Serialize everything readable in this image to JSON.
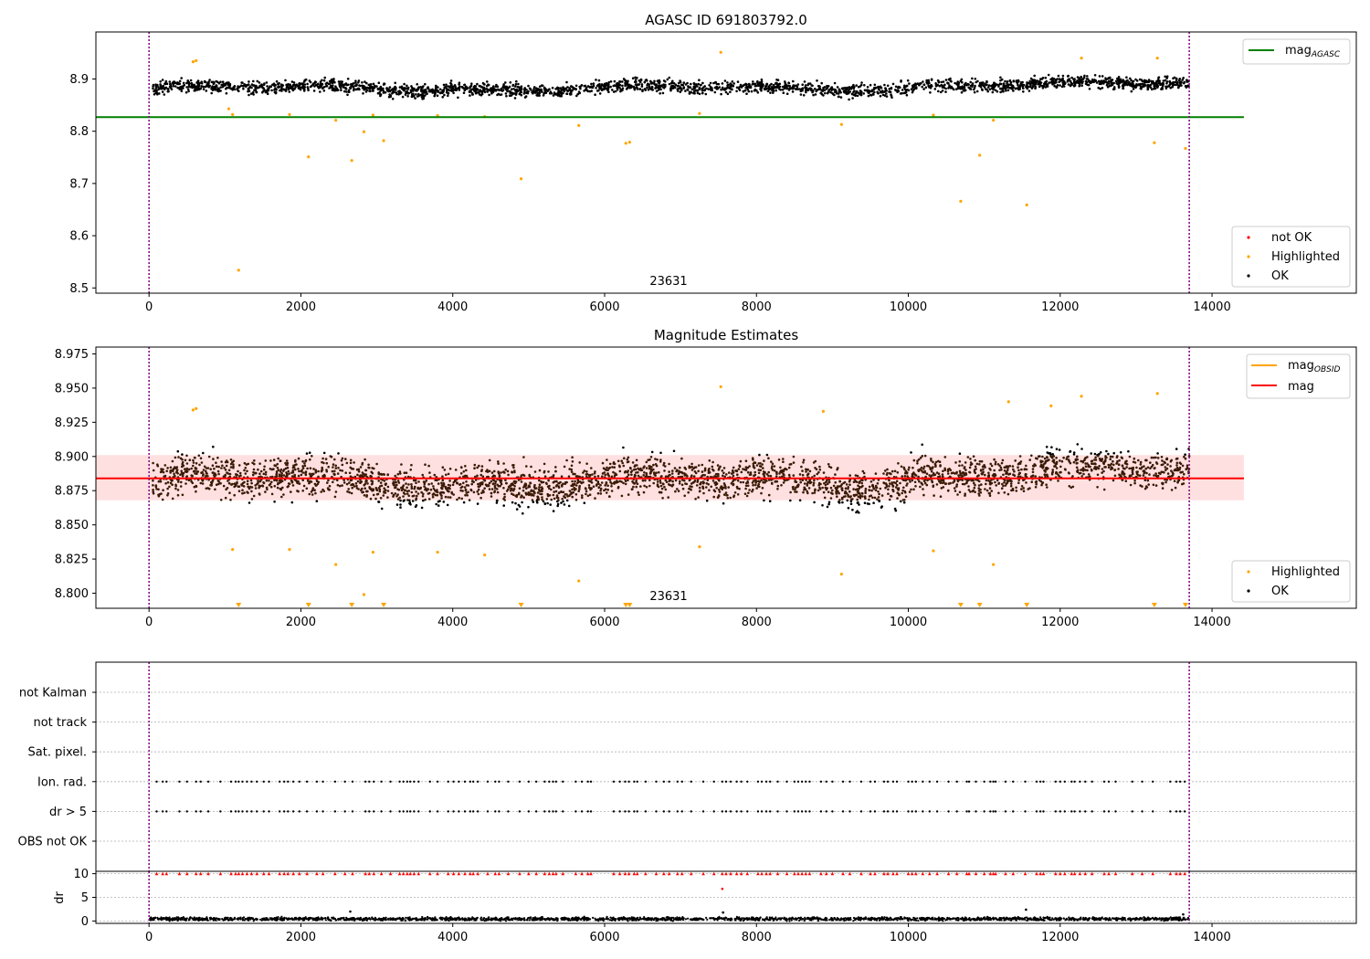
{
  "figure": {
    "title_top": "AGASC ID 691803792.0",
    "title_mid": "Magnitude Estimates",
    "obsid_label": "23631"
  },
  "colors": {
    "ok": "#000000",
    "highlighted": "#ffa500",
    "not_ok": "#ff0000",
    "mag_agasc": "#008000",
    "mag_obsid": "#ffa500",
    "mag_mean": "#ff0000",
    "band_fill": "#ffcccc",
    "marker_line": "#800080"
  },
  "chart_data": [
    {
      "id": "top",
      "type": "scatter",
      "title": "AGASC ID 691803792.0",
      "xlim": [
        -700,
        15900
      ],
      "ylim": [
        8.49,
        8.99
      ],
      "xticks": [
        0,
        2000,
        4000,
        6000,
        8000,
        10000,
        12000,
        14000
      ],
      "yticks": [
        8.5,
        8.6,
        8.7,
        8.8,
        8.9
      ],
      "obs_boundaries": [
        0,
        13700
      ],
      "obsid_annotation": {
        "text": "23631",
        "x": 6840
      },
      "mag_agasc": {
        "value": 8.827,
        "x_range": [
          -700,
          14420
        ]
      },
      "ok_band": {
        "center": 8.882,
        "spread": 0.012,
        "x_range": [
          50,
          13700
        ]
      },
      "legends": [
        {
          "position": "top-right",
          "entries": [
            {
              "label": "mag",
              "sub": "AGASC",
              "kind": "line",
              "color": "#008000"
            }
          ]
        },
        {
          "position": "bottom-right",
          "entries": [
            {
              "label": "not OK",
              "kind": "dot",
              "color": "#ff0000"
            },
            {
              "label": "Highlighted",
              "kind": "dot",
              "color": "#ffa500"
            },
            {
              "label": "OK",
              "kind": "dot",
              "color": "#000000"
            }
          ]
        }
      ],
      "highlighted_points": [
        [
          1050,
          8.843
        ],
        [
          1100,
          8.832
        ],
        [
          1180,
          8.534
        ],
        [
          1850,
          8.832
        ],
        [
          2100,
          8.751
        ],
        [
          2460,
          8.821
        ],
        [
          2670,
          8.744
        ],
        [
          2830,
          8.799
        ],
        [
          2950,
          8.831
        ],
        [
          3090,
          8.782
        ],
        [
          3800,
          8.83
        ],
        [
          4420,
          8.828
        ],
        [
          4900,
          8.709
        ],
        [
          5660,
          8.811
        ],
        [
          6280,
          8.777
        ],
        [
          6330,
          8.779
        ],
        [
          7250,
          8.834
        ],
        [
          7530,
          8.951
        ],
        [
          9120,
          8.813
        ],
        [
          10330,
          8.831
        ],
        [
          10690,
          8.666
        ],
        [
          10940,
          8.754
        ],
        [
          11120,
          8.821
        ],
        [
          11560,
          8.659
        ],
        [
          13240,
          8.778
        ],
        [
          13650,
          8.767
        ],
        [
          580,
          8.933
        ],
        [
          620,
          8.935
        ],
        [
          12280,
          8.94
        ],
        [
          13280,
          8.94
        ]
      ]
    },
    {
      "id": "middle",
      "type": "scatter",
      "title": "Magnitude Estimates",
      "xlim": [
        -700,
        15900
      ],
      "ylim": [
        8.789,
        8.98
      ],
      "xticks": [
        0,
        2000,
        4000,
        6000,
        8000,
        10000,
        12000,
        14000
      ],
      "yticks": [
        8.8,
        8.825,
        8.85,
        8.875,
        8.9,
        8.925,
        8.95,
        8.975
      ],
      "obs_boundaries": [
        0,
        13700
      ],
      "obsid_annotation": {
        "text": "23631",
        "x": 6840
      },
      "mag_mean": {
        "value": 8.884,
        "x_range": [
          -700,
          14420
        ]
      },
      "std_band": {
        "low": 8.868,
        "high": 8.901
      },
      "ok_band": {
        "center": 8.882,
        "spread": 0.014,
        "x_range": [
          50,
          13700
        ]
      },
      "legends": [
        {
          "position": "top-right",
          "entries": [
            {
              "label": "mag",
              "sub": "OBSID",
              "kind": "line",
              "color": "#ffa500"
            },
            {
              "label": "mag",
              "kind": "line",
              "color": "#ff0000"
            }
          ]
        },
        {
          "position": "bottom-right",
          "entries": [
            {
              "label": "Highlighted",
              "kind": "dot",
              "color": "#ffa500"
            },
            {
              "label": "OK",
              "kind": "dot",
              "color": "#000000"
            }
          ]
        }
      ],
      "highlighted_points": [
        [
          1100,
          8.832
        ],
        [
          1850,
          8.832
        ],
        [
          2460,
          8.821
        ],
        [
          2830,
          8.799
        ],
        [
          2950,
          8.83
        ],
        [
          3800,
          8.83
        ],
        [
          4420,
          8.828
        ],
        [
          5660,
          8.809
        ],
        [
          7250,
          8.834
        ],
        [
          7530,
          8.951
        ],
        [
          9120,
          8.814
        ],
        [
          10330,
          8.831
        ],
        [
          11120,
          8.821
        ],
        [
          580,
          8.934
        ],
        [
          620,
          8.935
        ],
        [
          8880,
          8.933
        ],
        [
          11320,
          8.94
        ],
        [
          11880,
          8.937
        ],
        [
          12280,
          8.944
        ],
        [
          13280,
          8.946
        ]
      ],
      "below_range_markers": [
        1180,
        2100,
        2670,
        3090,
        4900,
        6280,
        6330,
        10690,
        10940,
        11560,
        13240,
        13650
      ]
    },
    {
      "id": "flags",
      "type": "scatter",
      "xlim": [
        -700,
        15900
      ],
      "xticks": [
        0,
        2000,
        4000,
        6000,
        8000,
        10000,
        12000,
        14000
      ],
      "obs_boundaries": [
        0,
        13700
      ],
      "flag_rows": [
        "not Kalman",
        "not track",
        "Sat. pixel.",
        "Ion. rad.",
        "dr > 5",
        "OBS not OK"
      ],
      "flag_events_rows": [
        "Ion. rad.",
        "dr > 5"
      ],
      "flag_event_x": [
        100,
        180,
        230,
        400,
        500,
        620,
        680,
        780,
        940,
        1080,
        1140,
        1180,
        1230,
        1290,
        1350,
        1420,
        1510,
        1580,
        1720,
        1780,
        1830,
        1900,
        1980,
        2080,
        2210,
        2290,
        2450,
        2580,
        2680,
        2850,
        2900,
        2960,
        3060,
        3180,
        3300,
        3350,
        3400,
        3440,
        3490,
        3550,
        3700,
        3800,
        3940,
        4010,
        4080,
        4160,
        4230,
        4270,
        4330,
        4460,
        4560,
        4610,
        4730,
        4880,
        5000,
        5100,
        5210,
        5270,
        5320,
        5360,
        5450,
        5620,
        5700,
        5780,
        5820,
        6120,
        6200,
        6270,
        6320,
        6390,
        6430,
        6540,
        6680,
        6780,
        6850,
        6960,
        7020,
        7140,
        7300,
        7440,
        7550,
        7600,
        7660,
        7740,
        7800,
        7880,
        8020,
        8070,
        8130,
        8180,
        8280,
        8400,
        8500,
        8550,
        8600,
        8650,
        8700,
        8850,
        8920,
        9000,
        9140,
        9230,
        9380,
        9500,
        9560,
        9680,
        9730,
        9800,
        9850,
        10000,
        10050,
        10100,
        10190,
        10280,
        10380,
        10530,
        10640,
        10770,
        10800,
        10890,
        11000,
        11080,
        11120,
        11150,
        11280,
        11380,
        11540,
        11690,
        11740,
        11780,
        11940,
        12000,
        12060,
        12150,
        12190,
        12260,
        12330,
        12420,
        12580,
        12640,
        12730,
        12950,
        13080,
        13220,
        13450,
        13530,
        13580,
        13640
      ]
    },
    {
      "id": "dr",
      "type": "scatter",
      "ylabel": "dr",
      "xlim": [
        -700,
        15900
      ],
      "ylim": [
        -0.5,
        10.5
      ],
      "yticks": [
        0,
        5,
        10
      ],
      "xticks": [
        0,
        2000,
        4000,
        6000,
        8000,
        10000,
        12000,
        14000
      ],
      "xtick_labels": [
        "0",
        "2000",
        "4000",
        "6000",
        "8000",
        "10000",
        "12000",
        "14000"
      ],
      "obs_boundaries": [
        0,
        13700
      ],
      "capped_value": 10,
      "ok_band": {
        "center": 0.45,
        "spread": 0.35,
        "x_range": [
          0,
          13700
        ]
      },
      "outliers": [
        [
          7550,
          6.8
        ],
        [
          7560,
          1.8
        ],
        [
          11550,
          2.4
        ],
        [
          2650,
          2.0
        ],
        [
          13620,
          1.4
        ]
      ]
    }
  ]
}
